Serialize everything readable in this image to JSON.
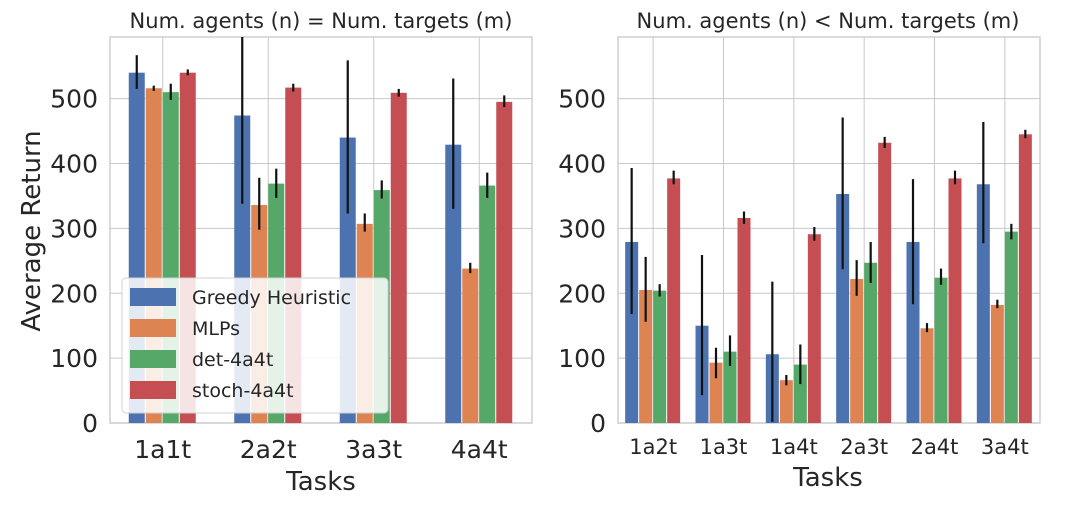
{
  "figure": {
    "ylabel": "Average Return",
    "legend": {
      "placement": "bottom-left of left panel",
      "entries": [
        "Greedy Heuristic",
        "MLPs",
        "det-4a4t",
        "stoch-4a4t"
      ]
    },
    "colors": {
      "Greedy Heuristic": "#4c72b0",
      "MLPs": "#dd8452",
      "det-4a4t": "#55a868",
      "stoch-4a4t": "#c44e52",
      "panel_bg": "#eaeaf2",
      "grid": "#c8c8c8"
    }
  },
  "chart_data": [
    {
      "type": "bar",
      "title": "Num. agents (n) = Num. targets (m)",
      "xlabel": "Tasks",
      "ylabel": "Average Return",
      "ylim": [
        0,
        595
      ],
      "yticks": [
        0,
        100,
        200,
        300,
        400,
        500
      ],
      "grid": true,
      "categories": [
        "1a1t",
        "2a2t",
        "3a3t",
        "4a4t"
      ],
      "series": [
        {
          "name": "Greedy Heuristic",
          "values": [
            540,
            474,
            440,
            429
          ],
          "err_low": [
            515,
            338,
            323,
            330
          ],
          "err_high": [
            567,
            600,
            559,
            531
          ]
        },
        {
          "name": "MLPs",
          "values": [
            516,
            336,
            307,
            238
          ],
          "err_low": [
            512,
            298,
            295,
            231
          ],
          "err_high": [
            520,
            378,
            323,
            247
          ]
        },
        {
          "name": "det-4a4t",
          "values": [
            510,
            369,
            359,
            366
          ],
          "err_low": [
            498,
            347,
            346,
            347
          ],
          "err_high": [
            523,
            392,
            374,
            386
          ]
        },
        {
          "name": "stoch-4a4t",
          "values": [
            540,
            517,
            509,
            495
          ],
          "err_low": [
            536,
            511,
            503,
            487
          ],
          "err_high": [
            545,
            523,
            515,
            505
          ]
        }
      ]
    },
    {
      "type": "bar",
      "title": "Num. agents (n) < Num. targets (m)",
      "xlabel": "Tasks",
      "ylim": [
        0,
        595
      ],
      "yticks": [
        0,
        100,
        200,
        300,
        400,
        500
      ],
      "grid": true,
      "categories": [
        "1a2t",
        "1a3t",
        "1a4t",
        "2a3t",
        "2a4t",
        "3a4t"
      ],
      "series": [
        {
          "name": "Greedy Heuristic",
          "values": [
            279,
            150,
            106,
            353,
            279,
            368
          ],
          "err_low": [
            168,
            43,
            2,
            237,
            183,
            277
          ],
          "err_high": [
            393,
            259,
            218,
            471,
            376,
            464
          ]
        },
        {
          "name": "MLPs",
          "values": [
            205,
            93,
            66,
            222,
            146,
            182
          ],
          "err_low": [
            156,
            69,
            58,
            196,
            140,
            177
          ],
          "err_high": [
            256,
            116,
            74,
            251,
            154,
            190
          ]
        },
        {
          "name": "det-4a4t",
          "values": [
            204,
            110,
            90,
            247,
            224,
            295
          ],
          "err_low": [
            195,
            88,
            60,
            216,
            213,
            283
          ],
          "err_high": [
            214,
            135,
            121,
            279,
            238,
            307
          ]
        },
        {
          "name": "stoch-4a4t",
          "values": [
            377,
            316,
            291,
            432,
            377,
            445
          ],
          "err_low": [
            368,
            307,
            281,
            424,
            368,
            439
          ],
          "err_high": [
            389,
            326,
            302,
            441,
            389,
            452
          ]
        }
      ]
    }
  ]
}
